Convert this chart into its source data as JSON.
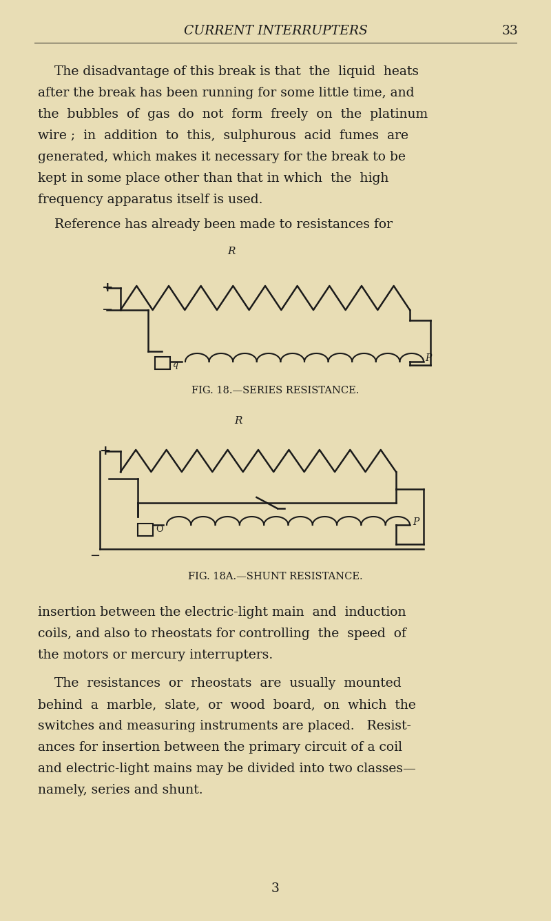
{
  "bg_color": "#e8ddb5",
  "text_color": "#1a1a1a",
  "page_width": 8.0,
  "page_height": 13.37,
  "header_title": "CURRENT INTERRUPTERS",
  "header_page": "33",
  "paragraph1": "The disadvantage of this break is that  the  liquid  heats\nafter the break has been running for some little time, and\nthe  bubbles  of  gas  do  not  form  freely  on  the  platinum\nwire ;  in  addition  to  this,  sulphurous  acid  fumes  are\ngenerated, which makes it necessary for the break to be\nkept in some place other than that in which  the  high\nfrequency apparatus itself is used.",
  "paragraph2": "Reference has already been made to resistances for",
  "fig18_caption": "FIG. 18.—SERIES RESISTANCE.",
  "fig18a_caption": "FIG. 18A.—SHUNT RESISTANCE.",
  "paragraph3": "insertion between the electric-light main  and  induction\ncoils, and also to rheostats for controlling  the  speed  of\nthe motors or mercury interrupters.",
  "paragraph4": "The  resistances  or  rheostats  are  usually  mounted\nbehind  a  marble,  slate,  or  wood  board,  on  which  the\nswitches and measuring instruments are placed.   Resist-\nances for insertion between the primary circuit of a coil\nand electric-light mains may be divided into two classes—\nnamely, series and shunt.",
  "page_number": "3",
  "font_size_body": 13.5,
  "font_size_header": 13.5,
  "font_size_caption": 10.5
}
